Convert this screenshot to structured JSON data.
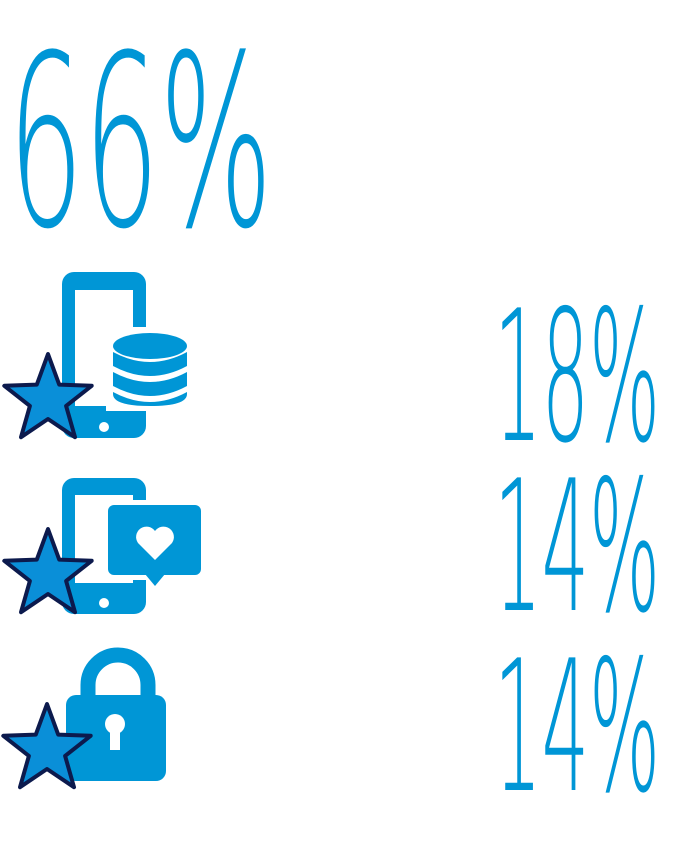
{
  "headline": "66%",
  "items": [
    "18%",
    "14%",
    "14%"
  ]
}
